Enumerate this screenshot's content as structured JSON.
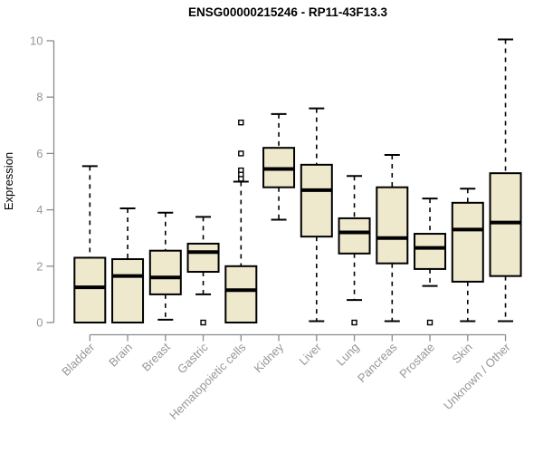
{
  "title": "ENSG00000215246 - RP11-43F13.3",
  "chart_data": {
    "type": "boxplot",
    "title": "ENSG00000215246 - RP11-43F13.3",
    "ylabel": "Expression",
    "xlabel": "",
    "ylim": [
      0,
      10
    ],
    "yticks": [
      0,
      2,
      4,
      6,
      8,
      10
    ],
    "grid": false,
    "legend": null,
    "box_fill": "#EEE8CD",
    "box_border": "#000000",
    "median_color": "#000000",
    "axis_color": "#8a8a8a",
    "label_color": "#979797",
    "categories": [
      "Bladder",
      "Brain",
      "Breast",
      "Gastric",
      "Hematopoietic cells",
      "Kidney",
      "Liver",
      "Lung",
      "Pancreas",
      "Prostate",
      "Skin",
      "Unknown / Other"
    ],
    "series": [
      {
        "name": "Bladder",
        "whisker_low": 0,
        "q1": 0,
        "median": 1.25,
        "q3": 2.3,
        "whisker_high": 5.55,
        "outliers": []
      },
      {
        "name": "Brain",
        "whisker_low": 0,
        "q1": 0,
        "median": 1.65,
        "q3": 2.25,
        "whisker_high": 4.05,
        "outliers": []
      },
      {
        "name": "Breast",
        "whisker_low": 0.1,
        "q1": 1.0,
        "median": 1.6,
        "q3": 2.55,
        "whisker_high": 3.9,
        "outliers": []
      },
      {
        "name": "Gastric",
        "whisker_low": 1.0,
        "q1": 1.8,
        "median": 2.5,
        "q3": 2.8,
        "whisker_high": 3.75,
        "outliers": [
          0
        ]
      },
      {
        "name": "Hematopoietic cells",
        "whisker_low": 0,
        "q1": 0,
        "median": 1.15,
        "q3": 2.0,
        "whisker_high": 5.0,
        "outliers": [
          7.1,
          6.0,
          5.4,
          5.25,
          5.1
        ]
      },
      {
        "name": "Kidney",
        "whisker_low": 3.65,
        "q1": 4.8,
        "median": 5.45,
        "q3": 6.2,
        "whisker_high": 7.4,
        "outliers": []
      },
      {
        "name": "Liver",
        "whisker_low": 0.05,
        "q1": 3.05,
        "median": 4.7,
        "q3": 5.6,
        "whisker_high": 7.6,
        "outliers": []
      },
      {
        "name": "Lung",
        "whisker_low": 0.8,
        "q1": 2.45,
        "median": 3.2,
        "q3": 3.7,
        "whisker_high": 5.2,
        "outliers": [
          0
        ]
      },
      {
        "name": "Pancreas",
        "whisker_low": 0.05,
        "q1": 2.1,
        "median": 3.0,
        "q3": 4.8,
        "whisker_high": 5.95,
        "outliers": []
      },
      {
        "name": "Prostate",
        "whisker_low": 1.3,
        "q1": 1.9,
        "median": 2.65,
        "q3": 3.15,
        "whisker_high": 4.4,
        "outliers": [
          0
        ]
      },
      {
        "name": "Skin",
        "whisker_low": 0.05,
        "q1": 1.45,
        "median": 3.3,
        "q3": 4.25,
        "whisker_high": 4.75,
        "outliers": []
      },
      {
        "name": "Unknown / Other",
        "whisker_low": 0.05,
        "q1": 1.65,
        "median": 3.55,
        "q3": 5.3,
        "whisker_high": 10.05,
        "outliers": []
      }
    ]
  }
}
